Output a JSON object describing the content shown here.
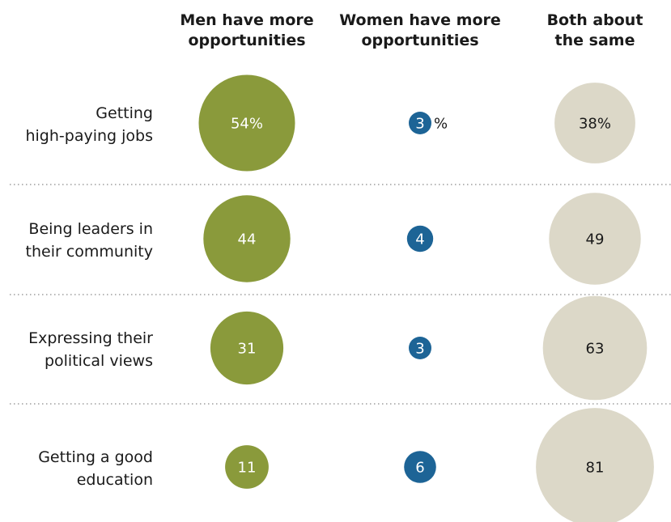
{
  "chart_data": {
    "type": "bubble-table",
    "columns": [
      {
        "key": "men",
        "header": [
          "Men have more",
          "opportunities"
        ],
        "color": "#8a9a3b",
        "text_color": "#ffffff"
      },
      {
        "key": "women",
        "header": [
          "Women have more",
          "opportunities"
        ],
        "color": "#1d6496",
        "text_color": "#ffffff"
      },
      {
        "key": "same",
        "header": [
          "Both about",
          "the same"
        ],
        "color": "#dcd8c8",
        "text_color": "#1a1a1a"
      }
    ],
    "rows": [
      {
        "label": [
          "Getting",
          "high-paying jobs"
        ],
        "values": {
          "men": 54,
          "women": 3,
          "same": 38
        },
        "display": {
          "men": "54%",
          "women": "3",
          "same": "38%"
        },
        "suffix": {
          "women": "%"
        }
      },
      {
        "label": [
          "Being leaders in",
          "their community"
        ],
        "values": {
          "men": 44,
          "women": 4,
          "same": 49
        },
        "display": {
          "men": "44",
          "women": "4",
          "same": "49"
        }
      },
      {
        "label": [
          "Expressing their",
          "political views"
        ],
        "values": {
          "men": 31,
          "women": 3,
          "same": 63
        },
        "display": {
          "men": "31",
          "women": "3",
          "same": "63"
        }
      },
      {
        "label": [
          "Getting a good",
          "education"
        ],
        "values": {
          "men": 11,
          "women": 6,
          "same": 81
        },
        "display": {
          "men": "11",
          "women": "6",
          "same": "81"
        }
      }
    ]
  }
}
